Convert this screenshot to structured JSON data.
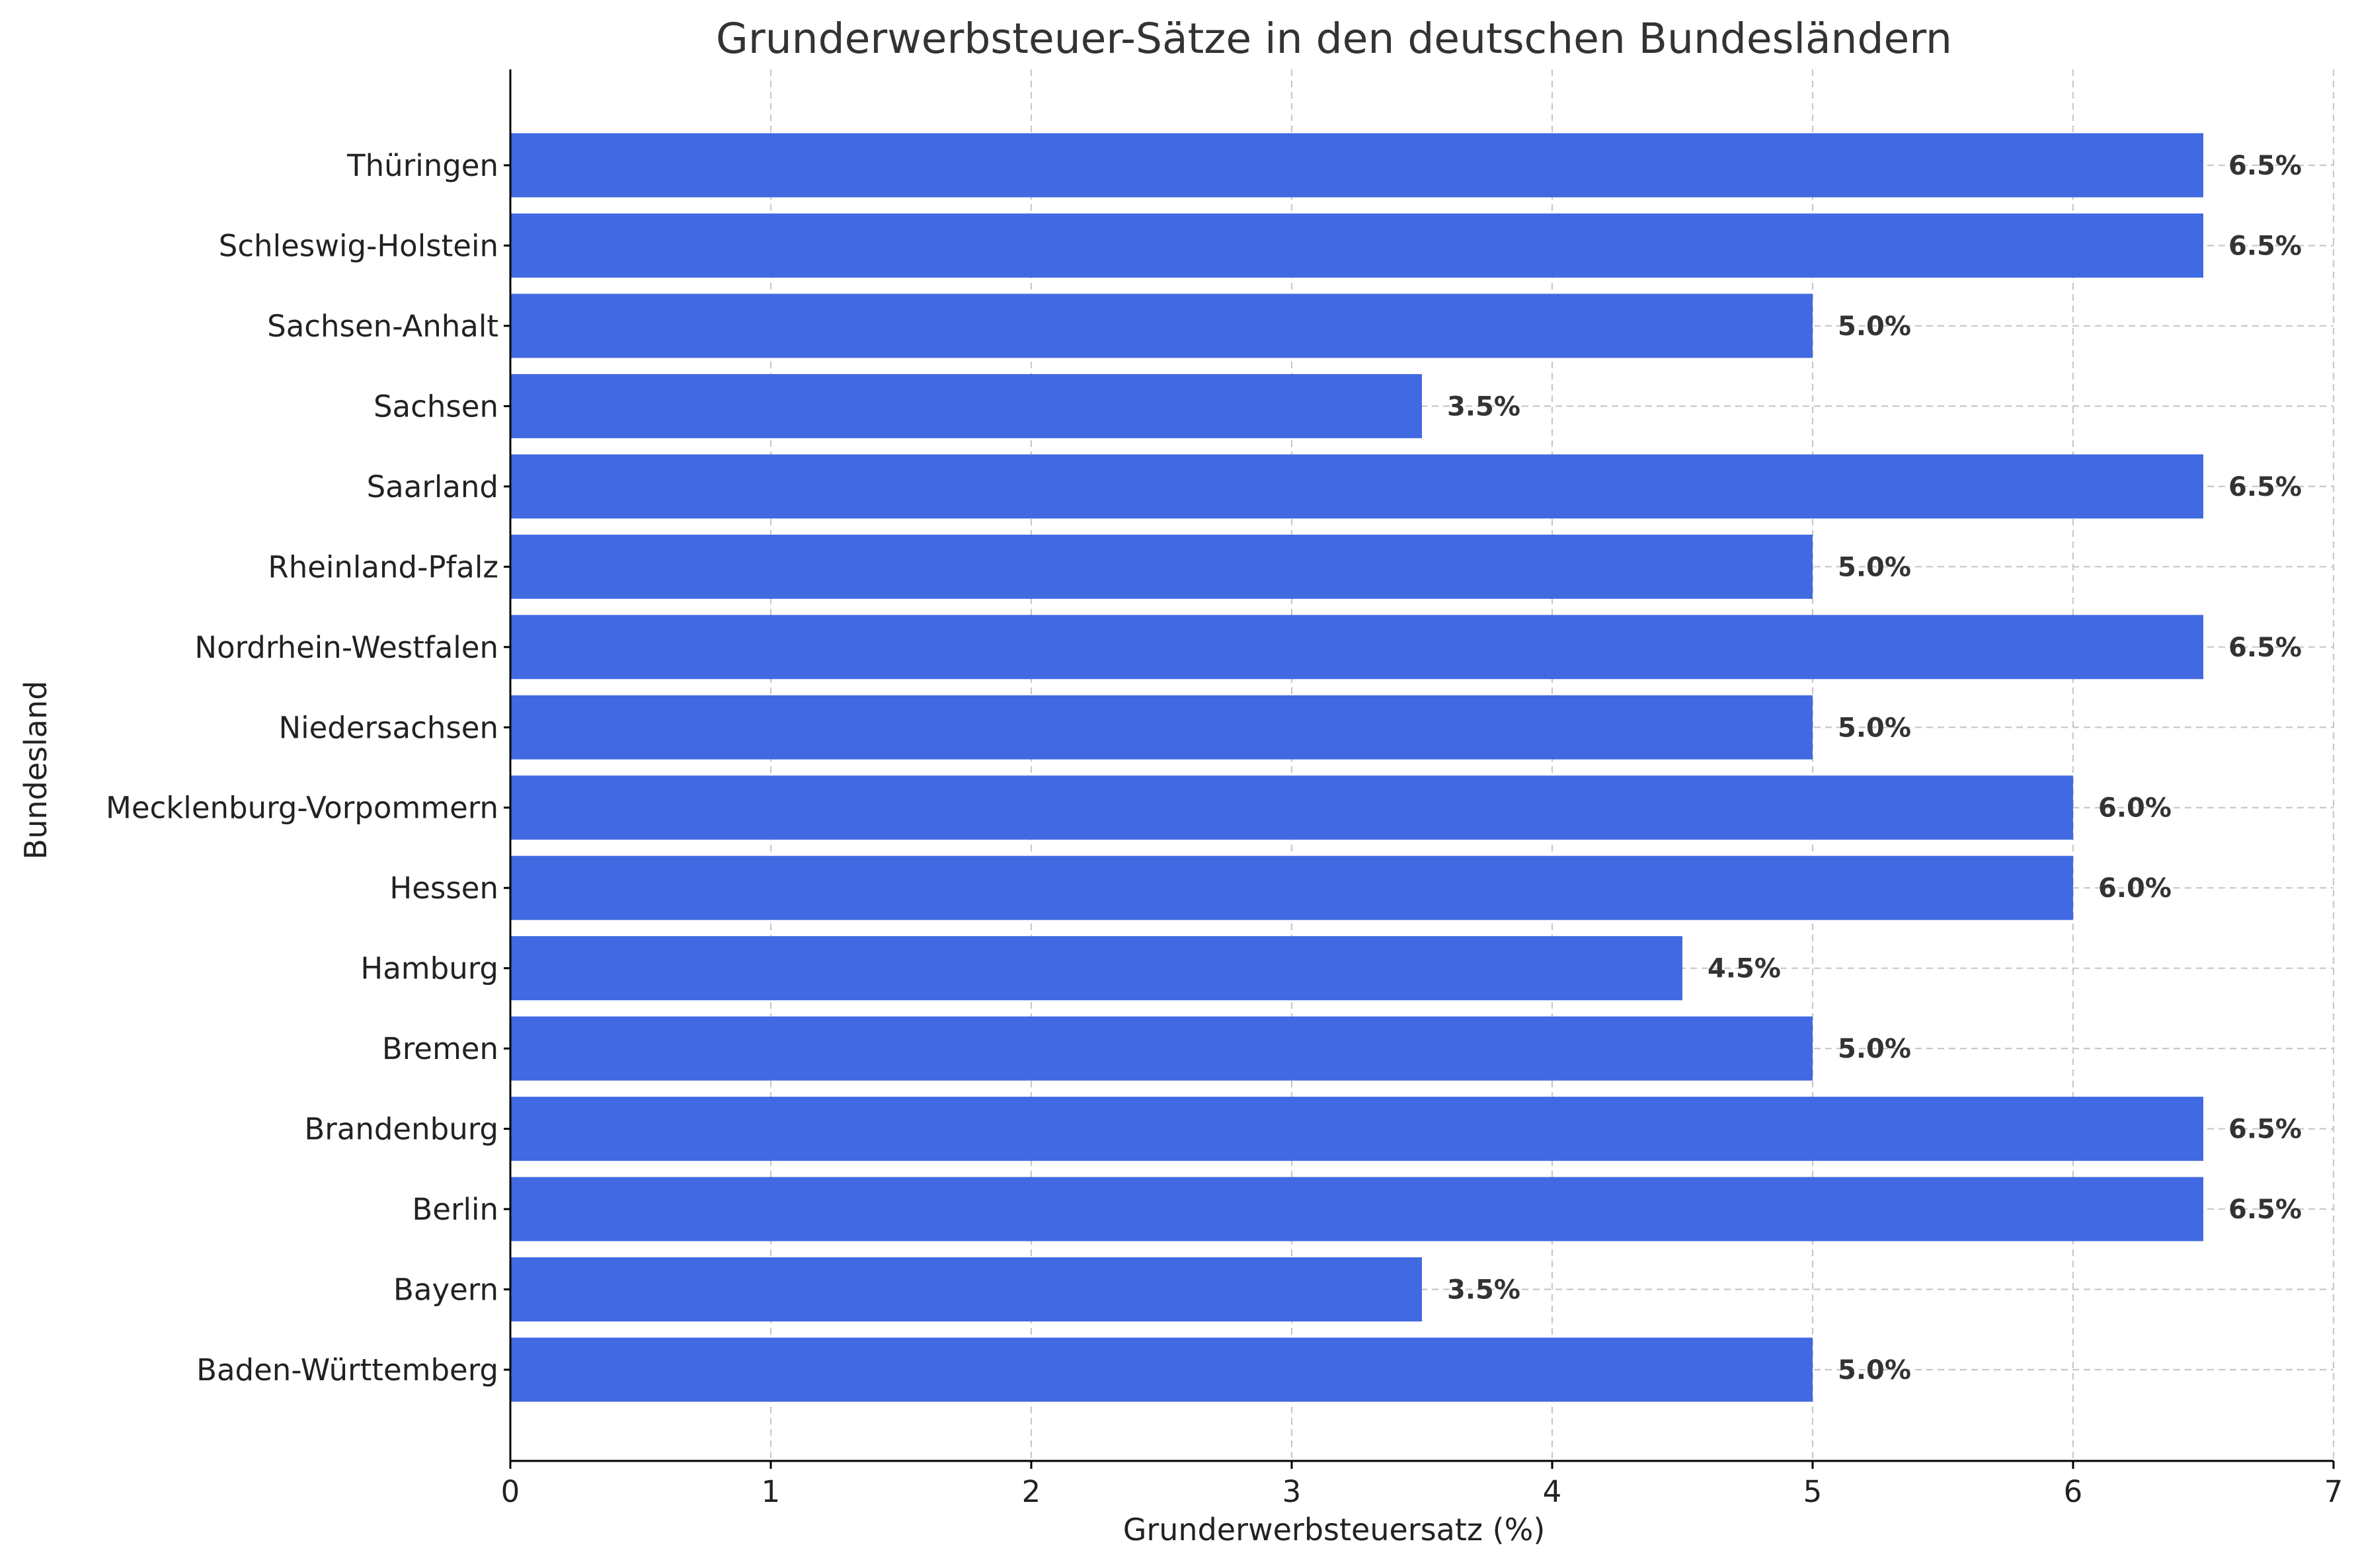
{
  "chart_data": {
    "type": "bar",
    "orientation": "horizontal",
    "title": "Grunderwerbsteuer-Sätze in den deutschen Bundesländern",
    "xlabel": "Grunderwerbsteuersatz (%)",
    "ylabel": "Bundesland",
    "xlim": [
      0,
      7
    ],
    "xticks": [
      0,
      1,
      2,
      3,
      4,
      5,
      6,
      7
    ],
    "grid": true,
    "bar_color": "#4169e1",
    "categories": [
      "Baden-Württemberg",
      "Bayern",
      "Berlin",
      "Brandenburg",
      "Bremen",
      "Hamburg",
      "Hessen",
      "Mecklenburg-Vorpommern",
      "Niedersachsen",
      "Nordrhein-Westfalen",
      "Rheinland-Pfalz",
      "Saarland",
      "Sachsen",
      "Sachsen-Anhalt",
      "Schleswig-Holstein",
      "Thüringen"
    ],
    "values": [
      5.0,
      3.5,
      6.5,
      6.5,
      5.0,
      4.5,
      6.0,
      6.0,
      5.0,
      6.5,
      5.0,
      6.5,
      3.5,
      5.0,
      6.5,
      6.5
    ],
    "data_labels": [
      "5.0%",
      "3.5%",
      "6.5%",
      "6.5%",
      "5.0%",
      "4.5%",
      "6.0%",
      "6.0%",
      "5.0%",
      "6.5%",
      "5.0%",
      "6.5%",
      "3.5%",
      "5.0%",
      "6.5%",
      "6.5%"
    ]
  }
}
